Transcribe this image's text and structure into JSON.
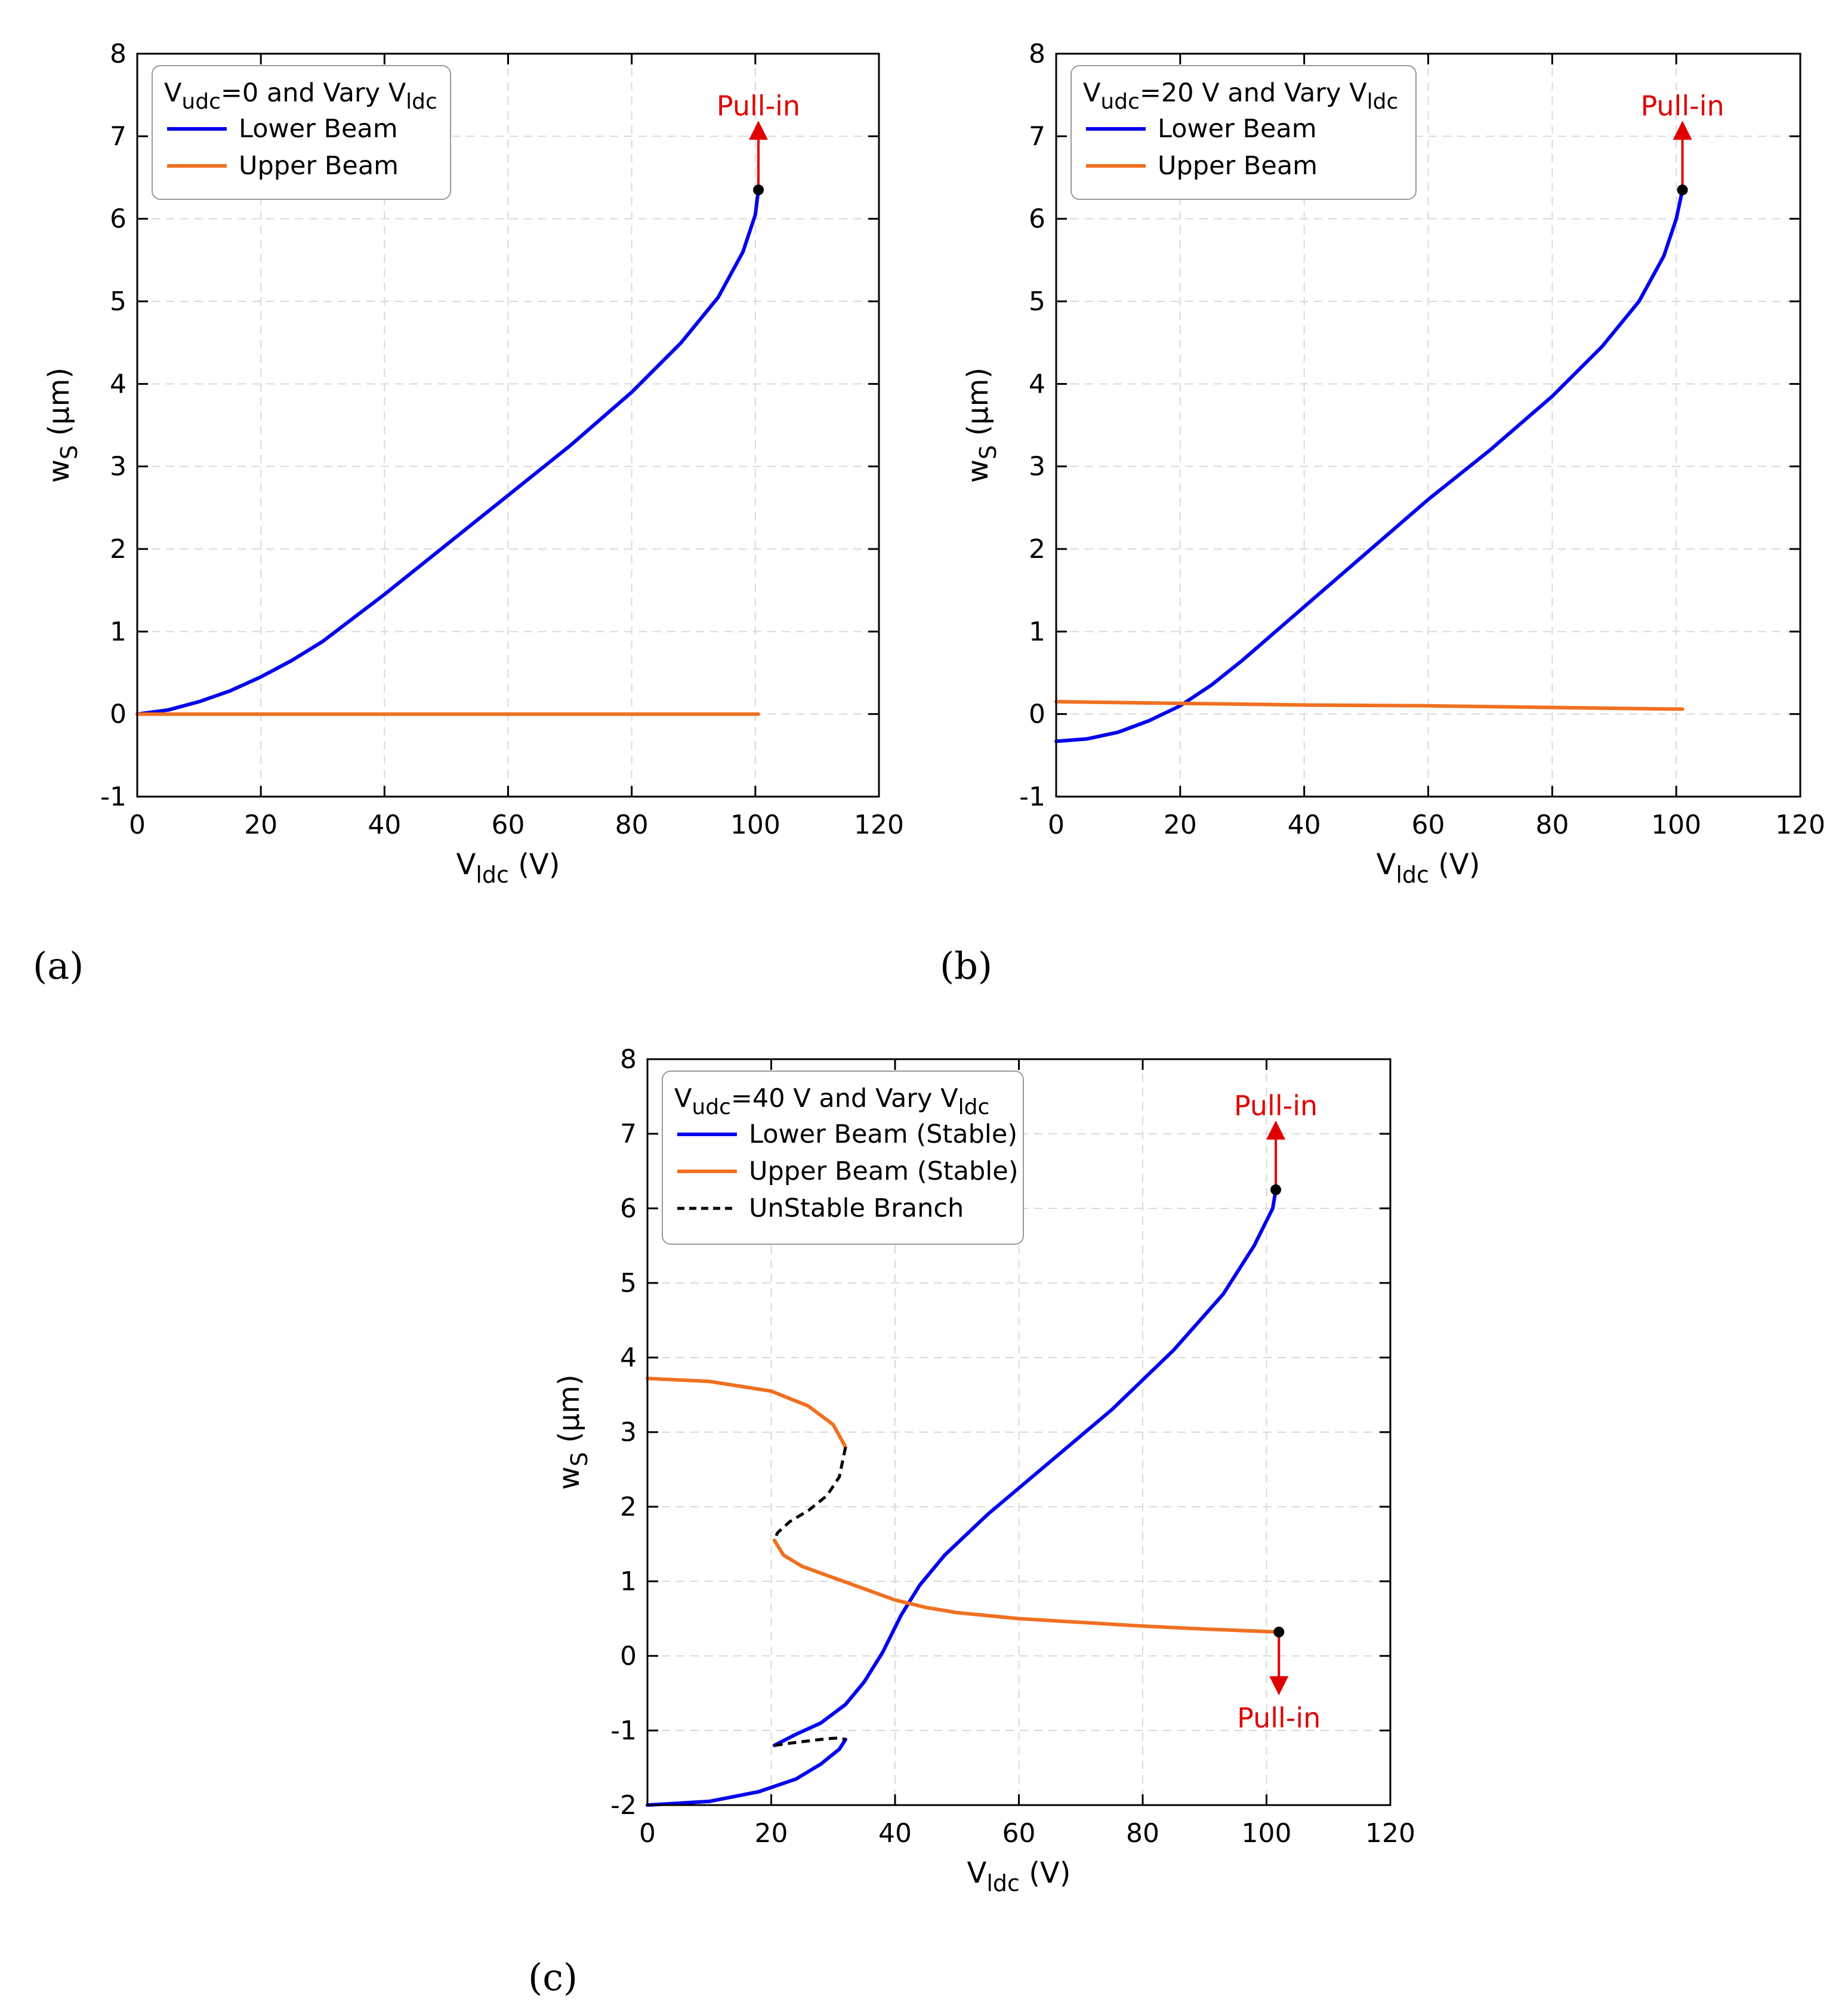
{
  "chart_data": [
    {
      "type": "line",
      "panel_label": "(a)",
      "xlabel_main": "V",
      "xlabel_sub": "ldc",
      "xlabel_unit": " (V)",
      "ylabel_main": "w",
      "ylabel_sub": "S",
      "ylabel_unit": " (µm)",
      "xlim": [
        0,
        120
      ],
      "ylim": [
        -1,
        8
      ],
      "xticks": [
        0,
        20,
        40,
        60,
        80,
        100,
        120
      ],
      "yticks": [
        -1,
        0,
        1,
        2,
        3,
        4,
        5,
        6,
        7,
        8
      ],
      "grid": true,
      "legend_title": {
        "a": "V",
        "b": "udc",
        "c": "=0 and Vary V",
        "d": "ldc"
      },
      "series": [
        {
          "name": "Lower Beam",
          "color": "#0000ee",
          "style": "solid",
          "x": [
            0,
            5,
            10,
            15,
            20,
            25,
            30,
            40,
            50,
            60,
            70,
            80,
            88,
            94,
            98,
            100,
            100.5
          ],
          "y": [
            0,
            0.05,
            0.15,
            0.28,
            0.45,
            0.65,
            0.88,
            1.45,
            2.05,
            2.65,
            3.25,
            3.9,
            4.5,
            5.05,
            5.6,
            6.05,
            6.35
          ]
        },
        {
          "name": "Upper Beam",
          "color": "#f07020",
          "style": "solid",
          "x": [
            0,
            100.5
          ],
          "y": [
            0,
            0
          ]
        }
      ],
      "markers": [
        {
          "x": 100.5,
          "y": 6.35
        }
      ],
      "annotations": [
        {
          "text": "Pull-in",
          "x": 100.5,
          "y": 6.35,
          "direction": "up"
        }
      ]
    },
    {
      "type": "line",
      "panel_label": "(b)",
      "xlabel_main": "V",
      "xlabel_sub": "ldc",
      "xlabel_unit": " (V)",
      "ylabel_main": "w",
      "ylabel_sub": "S",
      "ylabel_unit": " (µm)",
      "xlim": [
        0,
        120
      ],
      "ylim": [
        -1,
        8
      ],
      "xticks": [
        0,
        20,
        40,
        60,
        80,
        100,
        120
      ],
      "yticks": [
        -1,
        0,
        1,
        2,
        3,
        4,
        5,
        6,
        7,
        8
      ],
      "grid": true,
      "legend_title": {
        "a": "V",
        "b": "udc",
        "c": "=20 V and Vary V",
        "d": "ldc"
      },
      "series": [
        {
          "name": "Lower Beam",
          "color": "#0000ee",
          "style": "solid",
          "x": [
            0,
            5,
            10,
            15,
            20,
            25,
            30,
            40,
            50,
            60,
            70,
            80,
            88,
            94,
            98,
            100,
            101
          ],
          "y": [
            -0.33,
            -0.3,
            -0.22,
            -0.08,
            0.1,
            0.35,
            0.65,
            1.3,
            1.95,
            2.6,
            3.2,
            3.85,
            4.45,
            5.0,
            5.55,
            6.0,
            6.35
          ]
        },
        {
          "name": "Upper Beam",
          "color": "#f07020",
          "style": "solid",
          "x": [
            0,
            20,
            40,
            60,
            80,
            101
          ],
          "y": [
            0.15,
            0.13,
            0.11,
            0.1,
            0.08,
            0.06
          ]
        }
      ],
      "markers": [
        {
          "x": 101,
          "y": 6.35
        }
      ],
      "annotations": [
        {
          "text": "Pull-in",
          "x": 101,
          "y": 6.35,
          "direction": "up"
        }
      ]
    },
    {
      "type": "line",
      "panel_label": "(c)",
      "xlabel_main": "V",
      "xlabel_sub": "ldc",
      "xlabel_unit": " (V)",
      "ylabel_main": "w",
      "ylabel_sub": "S",
      "ylabel_unit": " (µm)",
      "xlim": [
        0,
        120
      ],
      "ylim": [
        -2,
        8
      ],
      "xticks": [
        0,
        20,
        40,
        60,
        80,
        100,
        120
      ],
      "yticks": [
        -2,
        -1,
        0,
        1,
        2,
        3,
        4,
        5,
        6,
        7,
        8
      ],
      "grid": true,
      "legend_title": {
        "a": "V",
        "b": "udc",
        "c": "=40 V and Vary V",
        "d": "ldc"
      },
      "series": [
        {
          "name": "Lower Beam (Stable)",
          "color": "#0000ee",
          "style": "solid",
          "segments": [
            {
              "x": [
                0,
                10,
                18,
                24,
                28,
                31,
                32
              ],
              "y": [
                -2.0,
                -1.95,
                -1.82,
                -1.65,
                -1.45,
                -1.25,
                -1.12
              ]
            },
            {
              "x": [
                20.5,
                24,
                28,
                32,
                35,
                38,
                41,
                44,
                48,
                55,
                65,
                75,
                85,
                93,
                98,
                101,
                101.5
              ],
              "y": [
                -1.2,
                -1.05,
                -0.9,
                -0.65,
                -0.35,
                0.05,
                0.55,
                0.95,
                1.35,
                1.9,
                2.6,
                3.3,
                4.1,
                4.85,
                5.5,
                6.0,
                6.25
              ]
            }
          ]
        },
        {
          "name": "Upper Beam (Stable)",
          "color": "#f07020",
          "style": "solid",
          "segments": [
            {
              "x": [
                0,
                10,
                20,
                26,
                30,
                32
              ],
              "y": [
                3.72,
                3.68,
                3.55,
                3.35,
                3.1,
                2.8
              ]
            },
            {
              "x": [
                20.5,
                22,
                25,
                30,
                35,
                40,
                45,
                50,
                60,
                70,
                80,
                90,
                102
              ],
              "y": [
                1.55,
                1.35,
                1.2,
                1.05,
                0.9,
                0.75,
                0.65,
                0.58,
                0.5,
                0.45,
                0.4,
                0.36,
                0.32
              ]
            }
          ]
        },
        {
          "name": "UnStable Branch",
          "color": "#000000",
          "style": "dashed",
          "segments": [
            {
              "x": [
                32,
                31,
                29,
                26,
                23,
                21,
                20.5
              ],
              "y": [
                2.8,
                2.4,
                2.15,
                1.95,
                1.8,
                1.65,
                1.55
              ]
            },
            {
              "x": [
                20.5,
                23,
                26,
                29,
                31,
                32
              ],
              "y": [
                -1.2,
                -1.17,
                -1.14,
                -1.11,
                -1.1,
                -1.12
              ]
            }
          ]
        }
      ],
      "markers": [
        {
          "x": 101.5,
          "y": 6.25
        },
        {
          "x": 102,
          "y": 0.32
        }
      ],
      "annotations": [
        {
          "text": "Pull-in",
          "x": 101.5,
          "y": 6.25,
          "direction": "up"
        },
        {
          "text": "Pull-in",
          "x": 102,
          "y": 0.32,
          "direction": "down"
        }
      ]
    }
  ]
}
